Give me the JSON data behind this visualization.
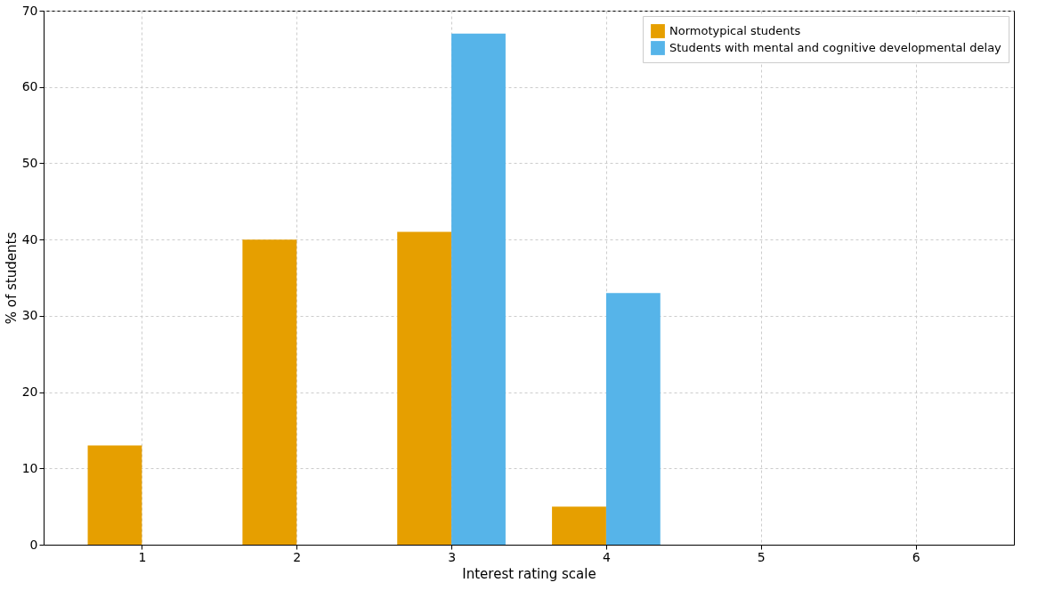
{
  "chart_data": {
    "type": "bar",
    "xlabel": "Interest rating scale",
    "ylabel": "% of students",
    "x": [
      1,
      2,
      3,
      4,
      5,
      6
    ],
    "series": [
      {
        "name": "Normotypical students",
        "color": "#e69f00",
        "values": [
          13,
          40,
          41,
          5,
          0,
          0
        ]
      },
      {
        "name": "Students with mental and cognitive developmental delay",
        "color": "#56b4e9",
        "values": [
          0,
          0,
          67,
          33,
          0,
          0
        ]
      }
    ],
    "xlim": [
      0.365,
      6.635
    ],
    "xticks": [
      1,
      2,
      3,
      4,
      5,
      6
    ],
    "ylim": [
      0,
      70
    ],
    "yticks": [
      0,
      10,
      20,
      30,
      40,
      50,
      60,
      70
    ],
    "grid": true,
    "legend": "top right"
  }
}
